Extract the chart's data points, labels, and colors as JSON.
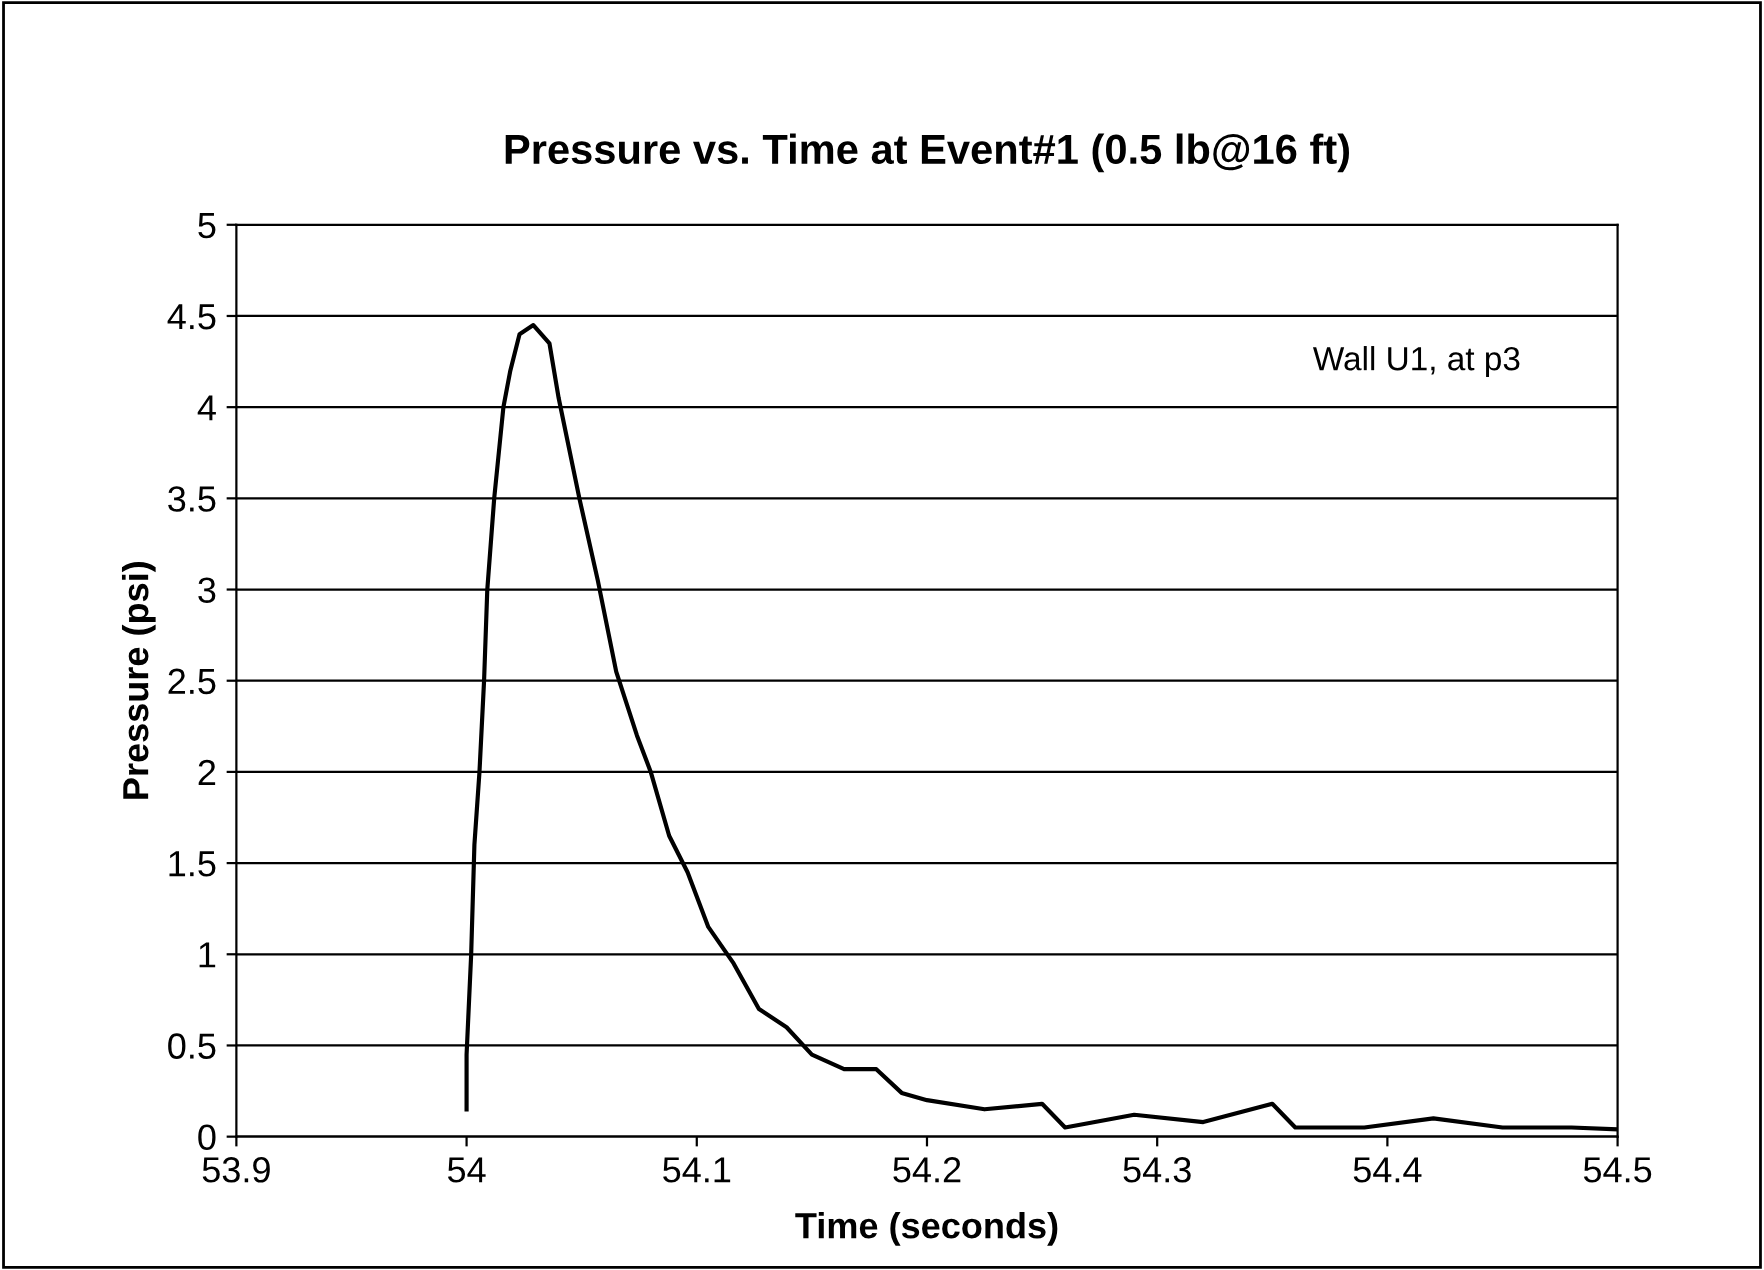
{
  "chart_data": {
    "type": "line",
    "title": "Pressure vs. Time at Event#1 (0.5 lb@16 ft)",
    "xlabel": "Time (seconds)",
    "ylabel": "Pressure (psi)",
    "annotations": [
      "Wall U1, at p3"
    ],
    "series": [
      {
        "color": "#000000",
        "x": [
          54.0,
          54.0,
          54.002,
          54.0034,
          54.0056,
          54.0076,
          54.009,
          54.012,
          54.016,
          54.019,
          54.023,
          54.029,
          54.036,
          54.04,
          54.049,
          54.057,
          54.065,
          54.074,
          54.08,
          54.088,
          54.096,
          54.105,
          54.116,
          54.127,
          54.139,
          54.15,
          54.164,
          54.178,
          54.189,
          54.2,
          54.225,
          54.25,
          54.26,
          54.29,
          54.32,
          54.35,
          54.36,
          54.39,
          54.42,
          54.45,
          54.48,
          54.5
        ],
        "values": [
          0.15,
          0.45,
          1.0,
          1.6,
          2.0,
          2.5,
          3.0,
          3.5,
          4.0,
          4.2,
          4.4,
          4.45,
          4.35,
          4.05,
          3.5,
          3.05,
          2.55,
          2.2,
          2.0,
          1.65,
          1.45,
          1.15,
          0.95,
          0.7,
          0.6,
          0.45,
          0.37,
          0.37,
          0.24,
          0.2,
          0.15,
          0.18,
          0.05,
          0.12,
          0.08,
          0.18,
          0.05,
          0.05,
          0.1,
          0.05,
          0.05,
          0.04
        ]
      }
    ],
    "xlim": [
      53.9,
      54.5
    ],
    "xticks": [
      53.9,
      54,
      54.1,
      54.2,
      54.3,
      54.4,
      54.5
    ],
    "ylim": [
      0,
      5
    ],
    "yticks": [
      0,
      0.5,
      1,
      1.5,
      2,
      2.5,
      3,
      3.5,
      4,
      4.5,
      5
    ],
    "grid": "y",
    "legend": false,
    "marker": "none",
    "line_style": "solid"
  }
}
